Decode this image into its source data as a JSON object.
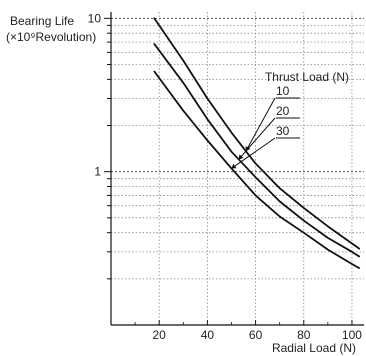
{
  "chart_data": {
    "type": "line",
    "title": "",
    "xlabel": "Radial Load (N)",
    "ylabel_line1": "Bearing Life",
    "ylabel_line2": "(×10⁹Revolution)",
    "x_ticks": [
      20,
      40,
      60,
      80,
      100
    ],
    "x_tick_labels": [
      "20",
      "40",
      "60",
      "80",
      "100"
    ],
    "xlim": [
      0,
      105
    ],
    "y_scale": "log",
    "ylim": [
      0.1,
      11
    ],
    "y_tick_labels": [
      {
        "value": 10,
        "label": "10"
      },
      {
        "value": 1,
        "label": "1"
      }
    ],
    "grid": true,
    "legend_title": "Thrust Load (N)",
    "series": [
      {
        "name": "10",
        "x": [
          18,
          30,
          40,
          50,
          60,
          70,
          80,
          90,
          100,
          103
        ],
        "y": [
          10,
          5.3,
          3.0,
          1.8,
          1.13,
          0.78,
          0.58,
          0.44,
          0.34,
          0.315
        ]
      },
      {
        "name": "20",
        "x": [
          18,
          30,
          40,
          50,
          60,
          70,
          80,
          90,
          100,
          103
        ],
        "y": [
          6.8,
          3.8,
          2.2,
          1.35,
          0.92,
          0.64,
          0.48,
          0.37,
          0.3,
          0.28
        ]
      },
      {
        "name": "30",
        "x": [
          18,
          30,
          40,
          50,
          60,
          70,
          80,
          90,
          100,
          103
        ],
        "y": [
          4.5,
          2.5,
          1.6,
          1.05,
          0.7,
          0.51,
          0.4,
          0.31,
          0.25,
          0.235
        ]
      }
    ]
  }
}
